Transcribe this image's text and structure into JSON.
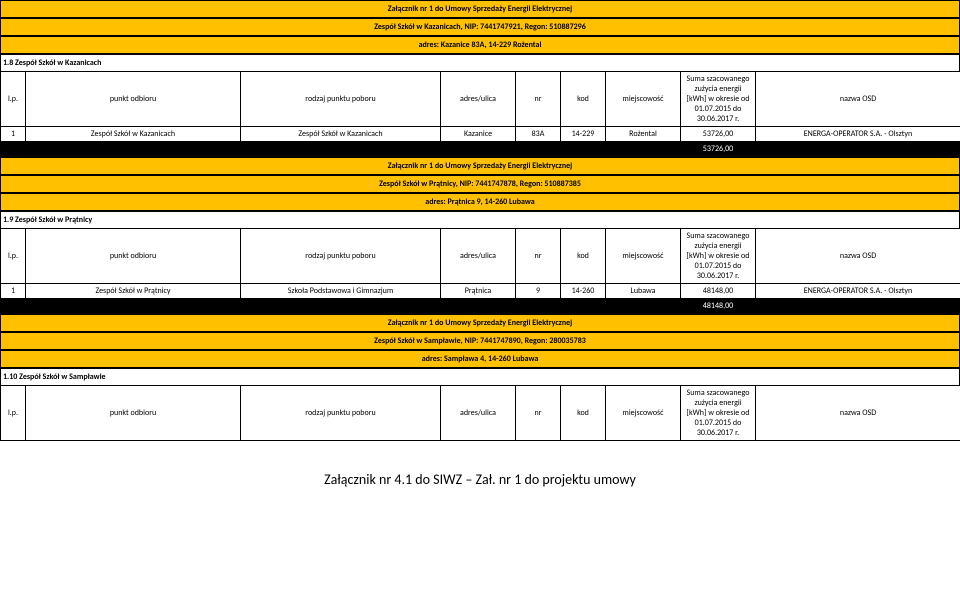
{
  "colors": {
    "orange": "#ffc000",
    "black": "#000000",
    "white": "#ffffff"
  },
  "attachment_title": "Załącznik nr 1 do Umowy Sprzedaży Energii Elektrycznej",
  "headers": {
    "lp": "l.p.",
    "punkt_odbioru": "punkt odbioru",
    "rodzaj_punktu": "rodzaj punktu poboru",
    "adres_ulica": "adres/ulica",
    "nr": "nr",
    "kod": "kod",
    "miejscowosc": "miejscowość",
    "suma": "Suma szacowanego zużycia energii [kWh] w okresie od 01.07.2015 do 30.06.2017 r.",
    "nazwa_osd": "nazwa OSD"
  },
  "sections": [
    {
      "org_line": "Zespół Szkół w Kazanicach, NIP: 7441747921, Regon: 510887296",
      "addr_line": "adres: Kazanice 83A, 14-229 Rożental",
      "title": "1.8 Zespół Szkół w Kazanicach",
      "row": {
        "lp": "1",
        "punkt": "Zespół Szkół w Kazanicach",
        "rodzaj": "Zespół Szkół w Kazanicach",
        "adres": "Kazanice",
        "nr": "83A",
        "kod": "14-229",
        "miejsc": "Rożental",
        "suma": "53726,00",
        "osd": "ENERGA-OPERATOR S.A. - Olsztyn"
      },
      "total": "53726,00"
    },
    {
      "org_line": "Zespół Szkół w Prątnicy, NIP: 7441747878, Regon: 510887385",
      "addr_line": "adres: Prątnica 9, 14-260 Lubawa",
      "title": "1.9 Zespół Szkół w Prątnicy",
      "row": {
        "lp": "1",
        "punkt": "Zespół Szkół w Prątnicy",
        "rodzaj": "Szkoła Podstawowa i Gimnazjum",
        "adres": "Prątnica",
        "nr": "9",
        "kod": "14-260",
        "miejsc": "Lubawa",
        "suma": "48148,00",
        "osd": "ENERGA-OPERATOR S.A. - Olsztyn"
      },
      "total": "48148,00"
    },
    {
      "org_line": "Zespół Szkół w Sampławie, NIP: 7441747890, Regon: 280035783",
      "addr_line": "adres: Sampława 4, 14-260 Lubawa",
      "title": "1.10 Zespół Szkół w Sampławie",
      "row": null,
      "total": null
    }
  ],
  "footer": "Załącznik nr 4.1 do SIWZ – Zał. nr 1 do projektu umowy"
}
